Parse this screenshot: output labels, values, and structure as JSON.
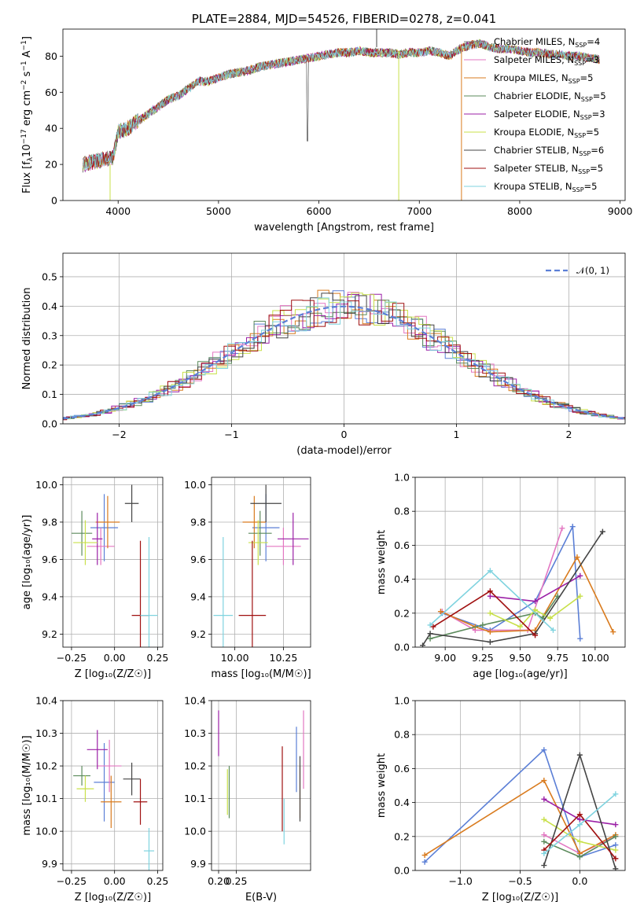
{
  "title": "PLATE=2884, MJD=54526, FIBERID=0278, z=0.041",
  "models": [
    {
      "name": "Chabrier MILES, N",
      "nssp": "4",
      "color": "#7f7f7f"
    },
    {
      "name": "Salpeter MILES, N",
      "nssp": "3",
      "color": "#e377c2"
    },
    {
      "name": "Kroupa MILES, N",
      "nssp": "5",
      "color": "#d97b1e"
    },
    {
      "name": "Chabrier ELODIE, N",
      "nssp": "5",
      "color": "#5b8a5b"
    },
    {
      "name": "Salpeter ELODIE, N",
      "nssp": "3",
      "color": "#9b1fa6"
    },
    {
      "name": "Kroupa ELODIE, N",
      "nssp": "5",
      "color": "#c8e04a"
    },
    {
      "name": "Chabrier STELIB, N",
      "nssp": "6",
      "color": "#444444"
    },
    {
      "name": "Salpeter STELIB, N",
      "nssp": "5",
      "color": "#a01010"
    },
    {
      "name": "Kroupa STELIB, N",
      "nssp": "5",
      "color": "#7fd3df"
    }
  ],
  "hist_colors": [
    "#5b7fd6",
    "#e377c2",
    "#d97b1e",
    "#5b8a5b",
    "#9b1fa6",
    "#c8e04a",
    "#444444",
    "#a01010",
    "#7fd3df"
  ],
  "chart_data": [
    {
      "type": "line",
      "id": "spectrum",
      "title": "PLATE=2884, MJD=54526, FIBERID=0278, z=0.041",
      "xlabel": "wavelength [Angstrom, rest frame]",
      "ylabel_main": "Flux [f",
      "ylabel_rest": "10",
      "xlim": [
        3450,
        9050
      ],
      "ylim": [
        0,
        95
      ],
      "xticks": [
        4000,
        5000,
        6000,
        7000,
        8000,
        9000
      ],
      "yticks": [
        0,
        20,
        40,
        60,
        80
      ],
      "x": [
        3650,
        3800,
        3950,
        4000,
        4100,
        4200,
        4300,
        4400,
        4500,
        4600,
        4700,
        4800,
        4900,
        5000,
        5100,
        5200,
        5300,
        5400,
        5500,
        5600,
        5700,
        5800,
        5900,
        6000,
        6100,
        6200,
        6300,
        6400,
        6500,
        6600,
        6700,
        6800,
        6900,
        7000,
        7100,
        7200,
        7300,
        7400,
        7500,
        7600,
        7700,
        7800,
        7900,
        8000,
        8100,
        8200,
        8300,
        8400,
        8500,
        8600,
        8700,
        8800
      ],
      "y": [
        20,
        22,
        24,
        38,
        40,
        44,
        48,
        52,
        56,
        58,
        62,
        66,
        66,
        68,
        70,
        71,
        72,
        74,
        75,
        76,
        77,
        78,
        79,
        80,
        81,
        82,
        82,
        83,
        82,
        82,
        82,
        81,
        82,
        82,
        83,
        82,
        80,
        84,
        86,
        87,
        85,
        84,
        84,
        83,
        82,
        82,
        81,
        81,
        80,
        80,
        79,
        78
      ]
    },
    {
      "type": "area",
      "id": "residual-hist",
      "xlabel": "(data-model)/error",
      "ylabel": "Normed distribution",
      "legend": "𝒩(0, 1)",
      "xlim": [
        -2.5,
        2.5
      ],
      "ylim": [
        0,
        0.58
      ],
      "xticks": [
        -2,
        -1,
        0,
        1,
        2
      ],
      "yticks": [
        0.0,
        0.1,
        0.2,
        0.3,
        0.4,
        0.5
      ]
    },
    {
      "type": "scatter",
      "id": "age-vs-Z",
      "xlabel": "Z [log₁₀(Z/Z☉)]",
      "ylabel": "age  [log₁₀(age/yr)]",
      "xlim": [
        -0.3,
        0.28
      ],
      "ylim": [
        9.13,
        10.04
      ],
      "xticks": [
        -0.25,
        0.0,
        0.25
      ],
      "yticks": [
        9.2,
        9.4,
        9.6,
        9.8,
        10.0
      ],
      "points": [
        {
          "x": -0.06,
          "y": 9.77
        },
        {
          "x": -0.08,
          "y": 9.67
        },
        {
          "x": -0.04,
          "y": 9.8
        },
        {
          "x": -0.19,
          "y": 9.74
        },
        {
          "x": -0.1,
          "y": 9.71
        },
        {
          "x": -0.17,
          "y": 9.69
        },
        {
          "x": 0.1,
          "y": 9.9
        },
        {
          "x": 0.15,
          "y": 9.3
        },
        {
          "x": 0.2,
          "y": 9.3
        }
      ]
    },
    {
      "type": "scatter",
      "id": "age-vs-mass",
      "xlabel": "mass [log₁₀(M/M☉)]",
      "ylabel": "",
      "xlim": [
        9.88,
        10.39
      ],
      "ylim": [
        9.13,
        10.04
      ],
      "xticks": [
        10.0,
        10.25
      ],
      "yticks": [
        9.2,
        9.4,
        9.6,
        9.8,
        10.0
      ],
      "points": [
        {
          "x": 10.16,
          "y": 9.77
        },
        {
          "x": 10.25,
          "y": 9.67
        },
        {
          "x": 10.1,
          "y": 9.8
        },
        {
          "x": 10.13,
          "y": 9.74
        },
        {
          "x": 10.3,
          "y": 9.71
        },
        {
          "x": 10.12,
          "y": 9.69
        },
        {
          "x": 10.16,
          "y": 9.9
        },
        {
          "x": 10.09,
          "y": 9.3
        },
        {
          "x": 9.94,
          "y": 9.3
        }
      ]
    },
    {
      "type": "line",
      "id": "mass-weight-vs-age",
      "xlabel": "age  [log₁₀(age/yr)]",
      "ylabel": "mass weight",
      "xlim": [
        8.8,
        10.2
      ],
      "ylim": [
        0,
        1
      ],
      "xticks": [
        9.0,
        9.25,
        9.5,
        9.75,
        10.0
      ],
      "yticks": [
        0.0,
        0.2,
        0.4,
        0.6,
        0.8,
        1.0
      ],
      "series": [
        {
          "x": [
            8.98,
            9.3,
            9.6,
            9.85,
            9.9
          ],
          "y": [
            0.2,
            0.1,
            0.27,
            0.71,
            0.05
          ]
        },
        {
          "x": [
            8.98,
            9.2,
            9.55,
            9.78
          ],
          "y": [
            0.21,
            0.1,
            0.1,
            0.7
          ]
        },
        {
          "x": [
            8.97,
            9.2,
            9.3,
            9.6,
            9.88,
            10.12
          ],
          "y": [
            0.21,
            0.12,
            0.09,
            0.1,
            0.53,
            0.09
          ]
        },
        {
          "x": [
            8.9,
            9.25,
            9.6,
            9.65,
            9.75
          ],
          "y": [
            0.05,
            0.13,
            0.2,
            0.17,
            0.3
          ]
        },
        {
          "x": [
            9.3,
            9.6,
            9.9
          ],
          "y": [
            0.3,
            0.27,
            0.42
          ]
        },
        {
          "x": [
            9.3,
            9.5,
            9.6,
            9.7,
            9.9
          ],
          "y": [
            0.2,
            0.12,
            0.22,
            0.17,
            0.3
          ]
        },
        {
          "x": [
            8.85,
            8.9,
            9.3,
            9.6,
            10.05
          ],
          "y": [
            0.01,
            0.08,
            0.03,
            0.08,
            0.68
          ]
        },
        {
          "x": [
            8.92,
            9.3,
            9.6
          ],
          "y": [
            0.12,
            0.33,
            0.07
          ]
        },
        {
          "x": [
            8.9,
            9.3,
            9.72
          ],
          "y": [
            0.13,
            0.45,
            0.1
          ]
        }
      ]
    },
    {
      "type": "scatter",
      "id": "mass-vs-Z",
      "xlabel": "Z [log₁₀(Z/Z☉)]",
      "ylabel": "mass [log₁₀(M/M☉)]",
      "xlim": [
        -0.3,
        0.28
      ],
      "ylim": [
        9.88,
        10.4
      ],
      "xticks": [
        -0.25,
        0.0,
        0.25
      ],
      "yticks": [
        9.9,
        10.0,
        10.1,
        10.2,
        10.3,
        10.4
      ],
      "points": [
        {
          "x": -0.06,
          "y": 10.15
        },
        {
          "x": -0.03,
          "y": 10.2
        },
        {
          "x": -0.02,
          "y": 10.09
        },
        {
          "x": -0.19,
          "y": 10.17
        },
        {
          "x": -0.1,
          "y": 10.25
        },
        {
          "x": -0.17,
          "y": 10.13
        },
        {
          "x": 0.1,
          "y": 10.16
        },
        {
          "x": 0.15,
          "y": 10.09
        },
        {
          "x": 0.2,
          "y": 9.94
        }
      ]
    },
    {
      "type": "scatter",
      "id": "mass-vs-ebv",
      "xlabel": "E(B-V)",
      "ylabel": "",
      "xlim": [
        0.18,
        0.46
      ],
      "ylim": [
        9.88,
        10.4
      ],
      "xticks": [
        0.2,
        0.25
      ],
      "yticks": [
        9.9,
        10.0,
        10.1,
        10.2,
        10.3,
        10.4
      ],
      "points": [
        {
          "x": 0.42,
          "y": 10.22
        },
        {
          "x": 0.44,
          "y": 10.25
        },
        {
          "x": 0.43,
          "y": 10.12
        },
        {
          "x": 0.23,
          "y": 10.12
        },
        {
          "x": 0.2,
          "y": 10.3
        },
        {
          "x": 0.225,
          "y": 10.12
        },
        {
          "x": 0.43,
          "y": 10.13
        },
        {
          "x": 0.38,
          "y": 10.13
        },
        {
          "x": 0.385,
          "y": 10.03
        }
      ]
    },
    {
      "type": "line",
      "id": "mass-weight-vs-Z",
      "xlabel": "Z [log₁₀(Z/Z☉)]",
      "ylabel": "mass weight",
      "xlim": [
        -1.38,
        0.38
      ],
      "ylim": [
        0,
        1
      ],
      "xticks": [
        -1.0,
        -0.5,
        0.0
      ],
      "yticks": [
        0.0,
        0.2,
        0.4,
        0.6,
        0.8,
        1.0
      ],
      "series": [
        {
          "x": [
            -1.3,
            -0.3,
            0.0,
            0.3
          ],
          "y": [
            0.05,
            0.71,
            0.08,
            0.15
          ]
        },
        {
          "x": [
            -0.3,
            0.0,
            0.3
          ],
          "y": [
            0.21,
            0.1,
            0.2
          ]
        },
        {
          "x": [
            -1.3,
            -0.3,
            0.0,
            0.3
          ],
          "y": [
            0.09,
            0.53,
            0.1,
            0.21
          ]
        },
        {
          "x": [
            -0.3,
            0.0,
            0.3
          ],
          "y": [
            0.17,
            0.08,
            0.2
          ]
        },
        {
          "x": [
            -0.3,
            0.0,
            0.3
          ],
          "y": [
            0.42,
            0.3,
            0.27
          ]
        },
        {
          "x": [
            -0.3,
            0.0,
            0.3
          ],
          "y": [
            0.3,
            0.17,
            0.12
          ]
        },
        {
          "x": [
            -0.3,
            0.0,
            0.3
          ],
          "y": [
            0.03,
            0.68,
            0.01
          ]
        },
        {
          "x": [
            -0.3,
            0.0,
            0.3
          ],
          "y": [
            0.12,
            0.33,
            0.07
          ]
        },
        {
          "x": [
            -0.3,
            0.0,
            0.3
          ],
          "y": [
            0.1,
            0.27,
            0.45
          ]
        }
      ]
    }
  ]
}
